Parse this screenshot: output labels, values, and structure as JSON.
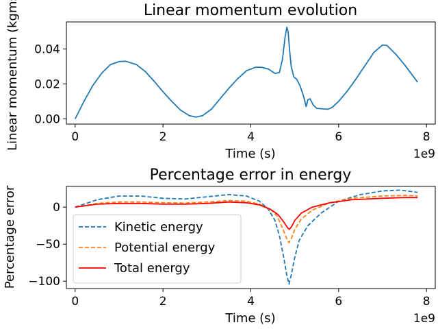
{
  "chart_data": [
    {
      "type": "line",
      "title": "Linear momentum evolution",
      "xlabel": "Time (s)",
      "ylabel": "Linear momentum (kgms",
      "x_offset_label": "1e9",
      "xlim": [
        -0.2,
        8.2
      ],
      "ylim": [
        -0.003,
        0.0555
      ],
      "x_ticks": [
        0,
        2,
        4,
        6,
        8
      ],
      "x_tick_labels": [
        "0",
        "2",
        "4",
        "6",
        "8"
      ],
      "y_ticks": [
        0.0,
        0.02,
        0.04
      ],
      "y_tick_labels": [
        "0.00",
        "0.02",
        "0.04"
      ],
      "grid": false,
      "series": [
        {
          "color": "#1f77b4",
          "style": "solid",
          "x": [
            0,
            0.2,
            0.4,
            0.6,
            0.8,
            1.0,
            1.15,
            1.4,
            1.6,
            1.8,
            2.0,
            2.2,
            2.4,
            2.6,
            2.75,
            2.9,
            3.1,
            3.3,
            3.5,
            3.7,
            3.9,
            4.1,
            4.25,
            4.4,
            4.55,
            4.65,
            4.72,
            4.78,
            4.82,
            4.85,
            4.88,
            4.92,
            4.98,
            5.05,
            5.12,
            5.2,
            5.26,
            5.3,
            5.35,
            5.42,
            5.5,
            5.6,
            5.75,
            5.85,
            6.0,
            6.2,
            6.4,
            6.6,
            6.8,
            7.0,
            7.1,
            7.3,
            7.5,
            7.8
          ],
          "y": [
            0.0,
            0.01,
            0.019,
            0.026,
            0.031,
            0.0328,
            0.033,
            0.031,
            0.027,
            0.0215,
            0.0155,
            0.01,
            0.005,
            0.0018,
            0.001,
            0.0018,
            0.0055,
            0.0115,
            0.0175,
            0.023,
            0.0275,
            0.0295,
            0.0295,
            0.0285,
            0.026,
            0.0265,
            0.034,
            0.047,
            0.0525,
            0.05,
            0.04,
            0.03,
            0.024,
            0.0225,
            0.019,
            0.013,
            0.007,
            0.011,
            0.0115,
            0.008,
            0.006,
            0.0058,
            0.0055,
            0.0065,
            0.01,
            0.016,
            0.023,
            0.0305,
            0.038,
            0.0423,
            0.042,
            0.037,
            0.031,
            0.021
          ]
        }
      ]
    },
    {
      "type": "line",
      "title": "Percentage error in energy",
      "xlabel": "Time (s)",
      "ylabel": "Percentage error",
      "x_offset_label": "1e9",
      "xlim": [
        -0.2,
        8.2
      ],
      "ylim": [
        -110,
        28
      ],
      "x_ticks": [
        0,
        2,
        4,
        6,
        8
      ],
      "x_tick_labels": [
        "0",
        "2",
        "4",
        "6",
        "8"
      ],
      "y_ticks": [
        0,
        -50,
        -100
      ],
      "y_tick_labels": [
        "0",
        "−50",
        "−100"
      ],
      "grid": false,
      "legend": "lower-left",
      "series": [
        {
          "name": "Kinetic energy",
          "color": "#1f77b4",
          "style": "dashed",
          "x": [
            0,
            0.5,
            1.0,
            1.5,
            2.0,
            2.5,
            3.0,
            3.5,
            3.9,
            4.2,
            4.4,
            4.55,
            4.65,
            4.75,
            4.82,
            4.87,
            4.92,
            5.0,
            5.1,
            5.3,
            5.6,
            6.0,
            6.5,
            7.0,
            7.4,
            7.8
          ],
          "y": [
            0,
            10,
            15,
            15,
            12,
            11,
            14,
            17,
            15,
            8,
            -3,
            -18,
            -38,
            -68,
            -92,
            -104,
            -92,
            -68,
            -45,
            -25,
            -8,
            8,
            17,
            22,
            23,
            20
          ]
        },
        {
          "name": "Potential energy",
          "color": "#ff7f0e",
          "style": "dashed",
          "x": [
            0,
            0.5,
            1.0,
            1.5,
            2.0,
            2.5,
            3.0,
            3.5,
            3.9,
            4.2,
            4.45,
            4.6,
            4.72,
            4.82,
            4.87,
            4.92,
            5.0,
            5.15,
            5.4,
            5.8,
            6.3,
            7.0,
            7.5,
            7.8
          ],
          "y": [
            0,
            5,
            7,
            7,
            6,
            5.5,
            7,
            9,
            8,
            4,
            -3,
            -12,
            -28,
            -43,
            -48,
            -43,
            -30,
            -16,
            -4,
            6,
            12,
            15,
            16,
            15
          ]
        },
        {
          "name": "Total energy",
          "color": "#ff0000",
          "style": "solid",
          "x": [
            0,
            0.5,
            1.0,
            1.5,
            2.0,
            2.5,
            3.0,
            3.5,
            3.9,
            4.2,
            4.45,
            4.62,
            4.75,
            4.84,
            4.88,
            4.93,
            5.0,
            5.15,
            5.4,
            5.8,
            6.3,
            7.0,
            7.5,
            7.8
          ],
          "y": [
            0,
            4,
            5,
            5,
            4,
            4,
            5,
            7,
            6,
            3,
            -3,
            -10,
            -20,
            -28,
            -30,
            -26,
            -18,
            -8,
            0,
            6,
            10,
            12,
            13,
            13
          ]
        }
      ]
    }
  ]
}
